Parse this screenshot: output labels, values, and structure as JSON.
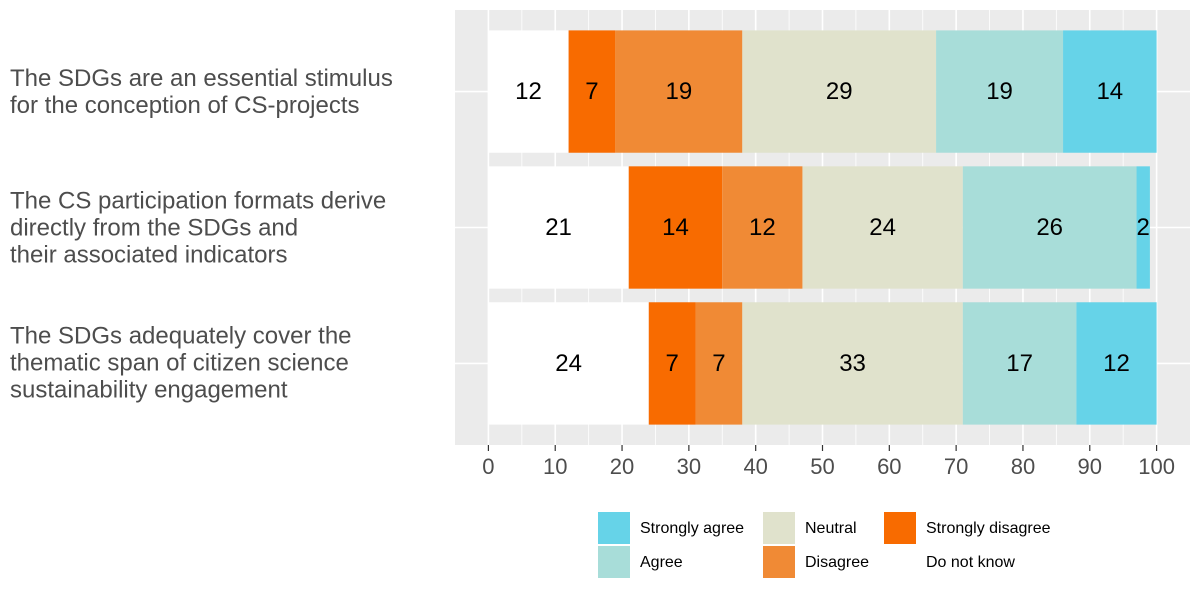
{
  "chart_data": {
    "type": "stacked-barh",
    "categories": [
      "The SDGs are an essential stimulus\nfor the conception of CS-projects",
      "The CS participation formats derive\ndirectly from the SDGs and\ntheir associated indicators",
      "The SDGs adequately cover the\nthematic span of citizen science\nsustainability engagement"
    ],
    "series": [
      {
        "name": "Strongly agree",
        "color": "#66d3e8",
        "values": [
          14,
          2,
          12
        ]
      },
      {
        "name": "Agree",
        "color": "#a8ddd9",
        "values": [
          19,
          26,
          17
        ]
      },
      {
        "name": "Neutral",
        "color": "#e0e2cc",
        "values": [
          29,
          24,
          33
        ]
      },
      {
        "name": "Disagree",
        "color": "#f08a35",
        "values": [
          19,
          12,
          7
        ]
      },
      {
        "name": "Strongly disagree",
        "color": "#f86b00",
        "values": [
          7,
          14,
          7
        ]
      },
      {
        "name": "Do not know",
        "color": "#ffffff",
        "values": [
          12,
          21,
          24
        ]
      }
    ],
    "xlim": [
      -5,
      105
    ],
    "xticks": [
      0,
      10,
      20,
      30,
      40,
      50,
      60,
      70,
      80,
      90,
      100
    ],
    "grid": true,
    "legend": "bottom"
  }
}
